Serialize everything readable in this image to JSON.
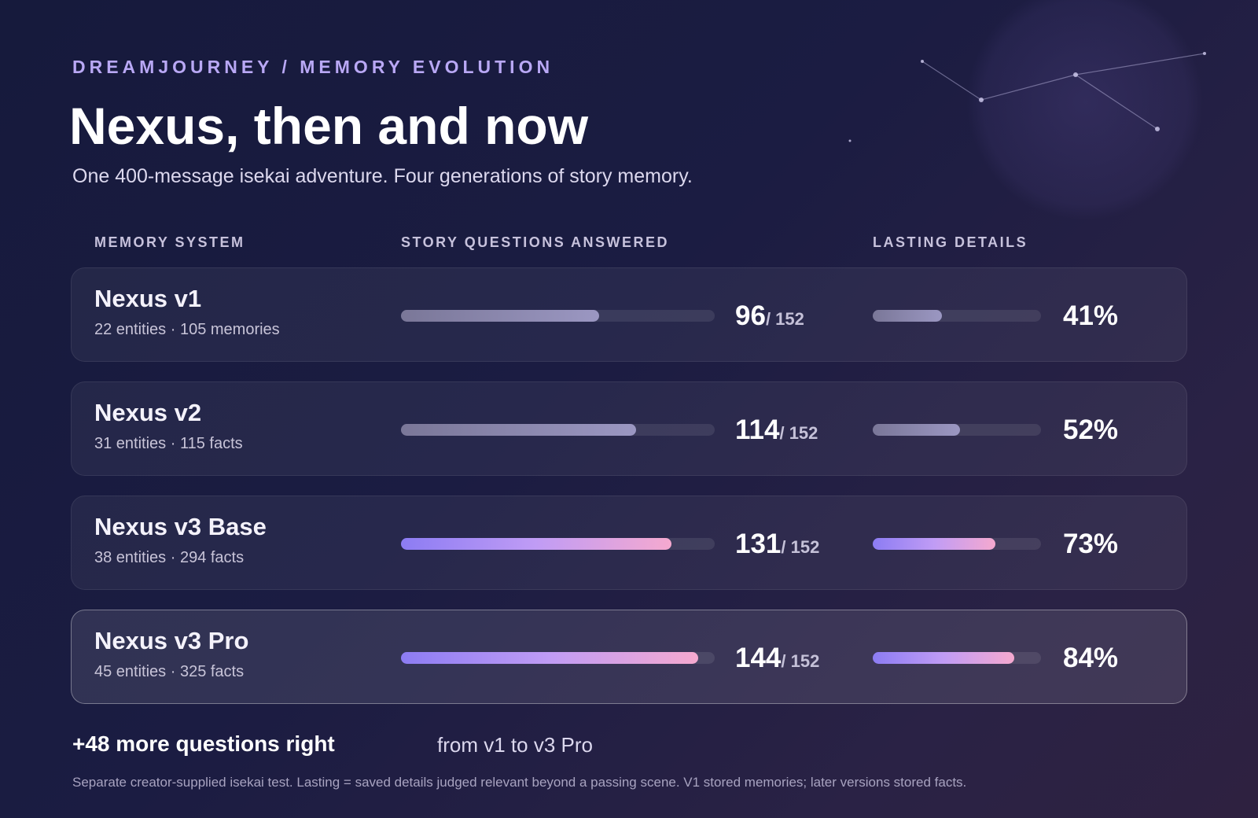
{
  "header": {
    "eyebrow": "DREAMJOURNEY / MEMORY EVOLUTION",
    "title": "Nexus, then and now",
    "subtitle": "One 400-message isekai adventure. Four generations of story memory."
  },
  "columns": [
    "MEMORY SYSTEM",
    "STORY QUESTIONS ANSWERED",
    "LASTING DETAILS"
  ],
  "questions_scale": [
    0,
    152
  ],
  "lasting_scale": [
    0,
    100
  ],
  "rows": [
    {
      "name": "Nexus v1",
      "details": "22 entities · 105 memories",
      "questions": 96,
      "questions_total": "/ 152",
      "lasting": 41,
      "lasting_label": "41%",
      "highlight": false
    },
    {
      "name": "Nexus v2",
      "details": "31 entities · 115 facts",
      "questions": 114,
      "questions_total": "/ 152",
      "lasting": 52,
      "lasting_label": "52%",
      "highlight": false
    },
    {
      "name": "Nexus v3 Base",
      "details": "38 entities · 294 facts",
      "questions": 131,
      "questions_total": "/ 152",
      "lasting": 73,
      "lasting_label": "73%",
      "highlight": true
    },
    {
      "name": "Nexus v3 Pro",
      "details": "45 entities · 325 facts",
      "questions": 144,
      "questions_total": "/ 152",
      "lasting": 84,
      "lasting_label": "84%",
      "highlight": true
    }
  ],
  "summary": {
    "headline": "+48 more questions right",
    "context": "from v1 to v3 Pro"
  },
  "footnote": "Separate creator-supplied isekai test. Lasting = saved details judged relevant beyond a passing scene. V1 stored memories; later versions stored facts."
}
